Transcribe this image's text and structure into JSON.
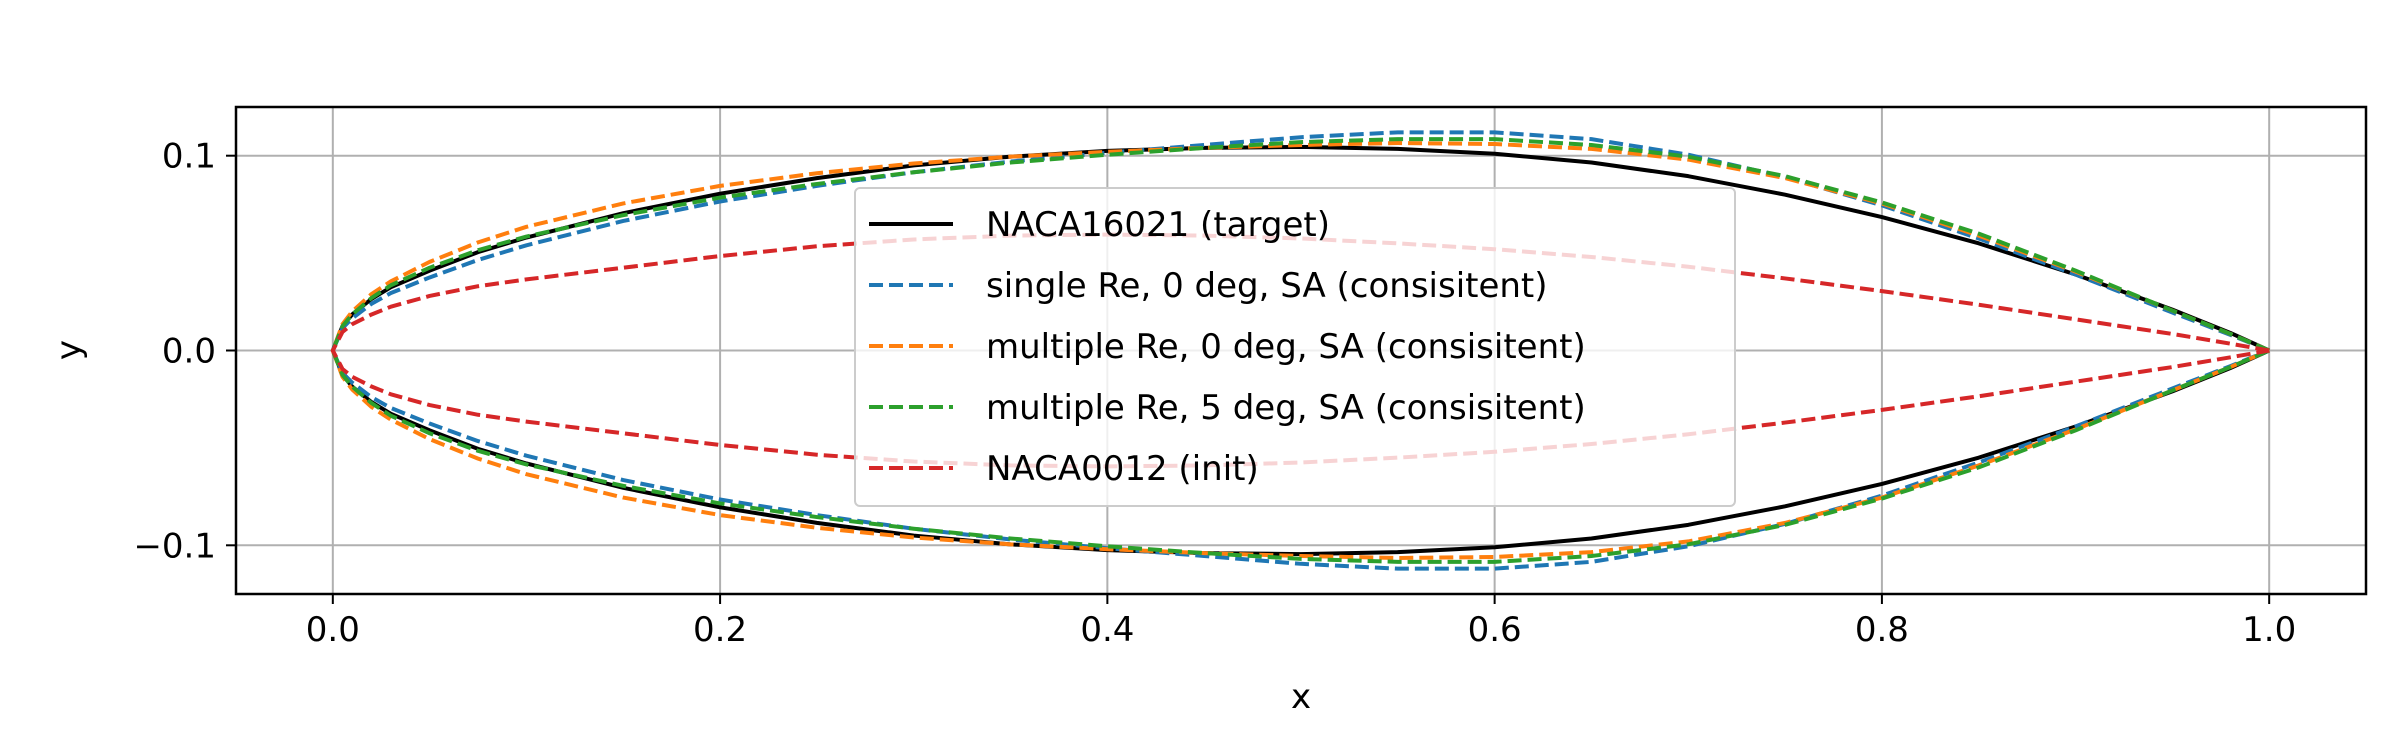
{
  "chart_data": {
    "type": "line",
    "title": "",
    "xlabel": "x",
    "ylabel": "y",
    "xlim": [
      -0.05,
      1.05
    ],
    "ylim": [
      -0.125,
      0.125
    ],
    "grid": true,
    "legend_position": "center",
    "xticks": [
      0.0,
      0.2,
      0.4,
      0.6,
      0.8,
      1.0
    ],
    "yticks": [
      -0.1,
      0.0,
      0.1
    ],
    "xtick_labels": [
      "0.0",
      "0.2",
      "0.4",
      "0.6",
      "0.8",
      "1.0"
    ],
    "ytick_labels": [
      "−0.1",
      "0.0",
      "0.1"
    ],
    "x": [
      0.0,
      0.005,
      0.01,
      0.02,
      0.03,
      0.05,
      0.075,
      0.1,
      0.15,
      0.2,
      0.25,
      0.3,
      0.35,
      0.4,
      0.45,
      0.5,
      0.55,
      0.6,
      0.65,
      0.7,
      0.75,
      0.8,
      0.85,
      0.9,
      0.95,
      0.98,
      1.0
    ],
    "series": [
      {
        "name": "NACA16021 (target)",
        "color": "#000000",
        "style": "solid",
        "upper": [
          0.0,
          0.0125,
          0.0185,
          0.0265,
          0.0325,
          0.041,
          0.0505,
          0.058,
          0.0705,
          0.0805,
          0.0885,
          0.095,
          0.0995,
          0.1025,
          0.104,
          0.1045,
          0.1035,
          0.101,
          0.0965,
          0.0895,
          0.08,
          0.0685,
          0.055,
          0.039,
          0.021,
          0.009,
          0.0
        ],
        "lower": [
          0.0,
          -0.0125,
          -0.0185,
          -0.0265,
          -0.0325,
          -0.041,
          -0.0505,
          -0.058,
          -0.0705,
          -0.0805,
          -0.0885,
          -0.095,
          -0.0995,
          -0.1025,
          -0.104,
          -0.1045,
          -0.1035,
          -0.101,
          -0.0965,
          -0.0895,
          -0.08,
          -0.0685,
          -0.055,
          -0.039,
          -0.021,
          -0.009,
          0.0
        ]
      },
      {
        "name": "single Re, 0 deg, SA (consisitent)",
        "color": "#1f77b4",
        "style": "dashed",
        "upper": [
          0.0,
          0.0115,
          0.0165,
          0.024,
          0.0295,
          0.0375,
          0.0465,
          0.054,
          0.0665,
          0.0765,
          0.0845,
          0.0915,
          0.097,
          0.1015,
          0.1055,
          0.1095,
          0.112,
          0.112,
          0.1085,
          0.1005,
          0.089,
          0.0745,
          0.0575,
          0.039,
          0.0195,
          0.008,
          0.0
        ],
        "lower": [
          0.0,
          -0.0115,
          -0.0165,
          -0.024,
          -0.0295,
          -0.0375,
          -0.0465,
          -0.054,
          -0.0665,
          -0.0765,
          -0.0845,
          -0.0915,
          -0.097,
          -0.1015,
          -0.1055,
          -0.1095,
          -0.112,
          -0.112,
          -0.1085,
          -0.1005,
          -0.089,
          -0.0745,
          -0.0575,
          -0.039,
          -0.0195,
          -0.008,
          0.0
        ]
      },
      {
        "name": "multiple Re, 0 deg, SA (consisitent)",
        "color": "#ff7f0e",
        "style": "dashed",
        "upper": [
          0.0,
          0.0135,
          0.02,
          0.029,
          0.0355,
          0.0455,
          0.0555,
          0.0635,
          0.0755,
          0.0845,
          0.091,
          0.096,
          0.0995,
          0.102,
          0.104,
          0.1055,
          0.1065,
          0.106,
          0.1035,
          0.098,
          0.0885,
          0.0755,
          0.059,
          0.0405,
          0.0205,
          0.0085,
          0.0
        ],
        "lower": [
          0.0,
          -0.0135,
          -0.02,
          -0.029,
          -0.0355,
          -0.0455,
          -0.0555,
          -0.0635,
          -0.0755,
          -0.0845,
          -0.091,
          -0.096,
          -0.0995,
          -0.102,
          -0.104,
          -0.1055,
          -0.1065,
          -0.106,
          -0.1035,
          -0.098,
          -0.0885,
          -0.0755,
          -0.059,
          -0.0405,
          -0.0205,
          -0.0085,
          0.0
        ]
      },
      {
        "name": "multiple Re, 5 deg, SA (consisitent)",
        "color": "#2ca02c",
        "style": "dashed",
        "upper": [
          0.0,
          0.0125,
          0.0185,
          0.027,
          0.0335,
          0.0425,
          0.0515,
          0.0585,
          0.0695,
          0.0785,
          0.0855,
          0.0915,
          0.0965,
          0.1005,
          0.104,
          0.107,
          0.1085,
          0.1085,
          0.1055,
          0.0995,
          0.0895,
          0.076,
          0.06,
          0.041,
          0.0205,
          0.0085,
          0.0
        ],
        "lower": [
          0.0,
          -0.0125,
          -0.0185,
          -0.027,
          -0.0335,
          -0.0425,
          -0.0515,
          -0.0585,
          -0.0695,
          -0.0785,
          -0.0855,
          -0.0915,
          -0.0965,
          -0.1005,
          -0.104,
          -0.107,
          -0.1085,
          -0.1085,
          -0.1055,
          -0.0995,
          -0.0895,
          -0.076,
          -0.06,
          -0.041,
          -0.0205,
          -0.0085,
          0.0
        ]
      },
      {
        "name": "NACA0012 (init)",
        "color": "#d62728",
        "style": "dashed",
        "upper": [
          0.0,
          0.0095,
          0.0135,
          0.0185,
          0.0225,
          0.028,
          0.033,
          0.0365,
          0.0425,
          0.0485,
          0.0535,
          0.057,
          0.059,
          0.0595,
          0.059,
          0.0575,
          0.055,
          0.052,
          0.048,
          0.043,
          0.037,
          0.0305,
          0.0235,
          0.016,
          0.0085,
          0.0035,
          0.0
        ],
        "lower": [
          0.0,
          -0.0095,
          -0.0135,
          -0.0185,
          -0.0225,
          -0.028,
          -0.033,
          -0.0365,
          -0.0425,
          -0.0485,
          -0.0535,
          -0.057,
          -0.059,
          -0.0595,
          -0.059,
          -0.0575,
          -0.055,
          -0.052,
          -0.048,
          -0.043,
          -0.037,
          -0.0305,
          -0.0235,
          -0.016,
          -0.0085,
          -0.0035,
          0.0
        ]
      }
    ]
  }
}
